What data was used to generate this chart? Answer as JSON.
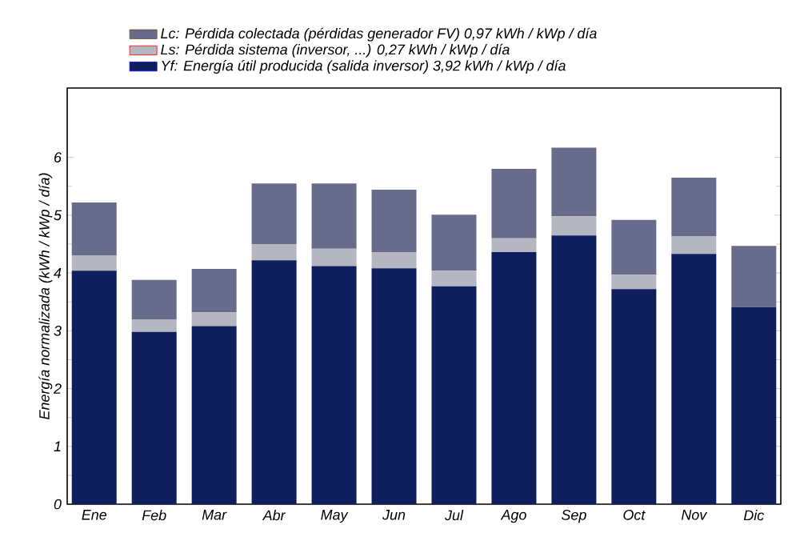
{
  "chart_data": {
    "type": "bar",
    "stacked": true,
    "ylabel": "Energía normalizada (kWh / kWp / día)",
    "categories": [
      "Ene",
      "Feb",
      "Mar",
      "Abr",
      "May",
      "Jun",
      "Jul",
      "Ago",
      "Sep",
      "Oct",
      "Nov",
      "Dic"
    ],
    "ylim": [
      0,
      7.2
    ],
    "yticks": [
      0,
      1,
      2,
      3,
      4,
      5,
      6
    ],
    "legend": "top",
    "grid": false,
    "series": [
      {
        "name": "Yf: Energía útil producida (salida inversor) 3,92 kWh / kWp / día",
        "color": "#0f1f5e",
        "values": [
          4.04,
          2.98,
          3.08,
          4.22,
          4.12,
          4.08,
          3.77,
          4.36,
          4.65,
          3.72,
          4.33,
          3.41
        ]
      },
      {
        "name": "Ls: Pérdida sistema (inversor, ...) 0,27 kWh / kWp / día",
        "color": "#b4b6c0",
        "values": [
          0.26,
          0.21,
          0.24,
          0.28,
          0.3,
          0.28,
          0.27,
          0.24,
          0.33,
          0.25,
          0.3,
          0.0
        ]
      },
      {
        "name": "Lc: Pérdida colectada (pérdidas generador FV) 0,97 kWh / kWp / día",
        "color": "#676c8c",
        "values": [
          0.92,
          0.69,
          0.75,
          1.05,
          1.13,
          1.08,
          0.97,
          1.2,
          1.19,
          0.95,
          1.02,
          1.06
        ]
      }
    ]
  }
}
